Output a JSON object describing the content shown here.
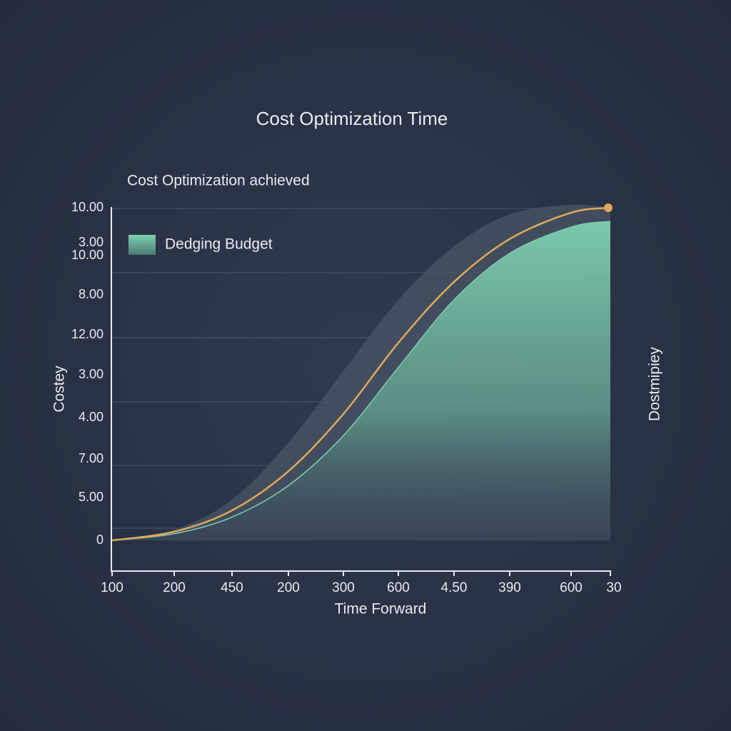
{
  "chart_data": {
    "type": "area",
    "title": "Cost Optimization Time",
    "subtitle": "Cost Optimization achieved",
    "y_label": "Costey",
    "y2_label": "Dostmipiey",
    "x_label": "Time Forward",
    "y_axis_labels": [
      "10.00",
      "3.00",
      "10.00",
      "8.00",
      "12.00",
      "3.00",
      "4.00",
      "7.00",
      "5.00",
      "0"
    ],
    "categories": [
      "100",
      "200",
      "450",
      "200",
      "300",
      "600",
      "4.50",
      "390",
      "600",
      "30"
    ],
    "ylim": [
      0,
      100
    ],
    "series": [
      {
        "color": "#4a5566",
        "values": [
          0,
          3.2,
          12.2,
          29.4,
          50.9,
          72.3,
          88.4,
          98,
          100.9,
          100
        ]
      },
      {
        "name": "Dedging Budget",
        "color": "#7ecfb0",
        "values": [
          0,
          2,
          7,
          16.5,
          31.5,
          52,
          72.3,
          86.3,
          94.2,
          95.9
        ]
      },
      {
        "color": "#e0a95a",
        "values": [
          0,
          2.6,
          9,
          20.8,
          38,
          59.4,
          77.7,
          90.6,
          98.5,
          100
        ]
      }
    ]
  }
}
